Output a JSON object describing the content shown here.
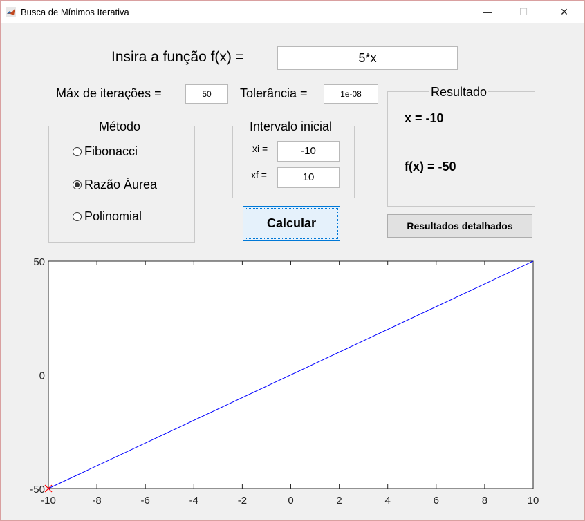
{
  "window": {
    "title": "Busca de Mínimos Iterativa",
    "minimize": "—",
    "maximize": "☐",
    "close": "✕"
  },
  "function_input": {
    "label": "Insira a função f(x) =",
    "value": "5*x"
  },
  "max_iter": {
    "label": "Máx de iterações =",
    "value": "50"
  },
  "tolerance": {
    "label": "Tolerância =",
    "value": "1e-08"
  },
  "method": {
    "title": "Método",
    "options": [
      {
        "label": "Fibonacci",
        "checked": false
      },
      {
        "label": "Razão Áurea",
        "checked": true
      },
      {
        "label": "Polinomial",
        "checked": false
      }
    ]
  },
  "interval": {
    "title": "Intervalo inicial",
    "xi_label": "xi =",
    "xi_value": "-10",
    "xf_label": "xf =",
    "xf_value": "10"
  },
  "calculate_button": "Calcular",
  "result": {
    "title": "Resultado",
    "x_text": "x = -10",
    "fx_text": "f(x) = -50"
  },
  "details_button": "Resultados detalhados",
  "chart_data": {
    "type": "line",
    "xlim": [
      -10,
      10
    ],
    "ylim": [
      -50,
      50
    ],
    "x_ticks": [
      "-10",
      "-8",
      "-6",
      "-4",
      "-2",
      "0",
      "2",
      "4",
      "6",
      "8",
      "10"
    ],
    "y_ticks": [
      "50",
      "0",
      "-50"
    ],
    "series": [
      {
        "x": [
          -10,
          10
        ],
        "y": [
          -50,
          50
        ],
        "color": "#0000ff"
      }
    ],
    "marker": {
      "x": -10,
      "y": -50,
      "symbol": "x",
      "color": "#ff0000"
    },
    "grid": false
  }
}
